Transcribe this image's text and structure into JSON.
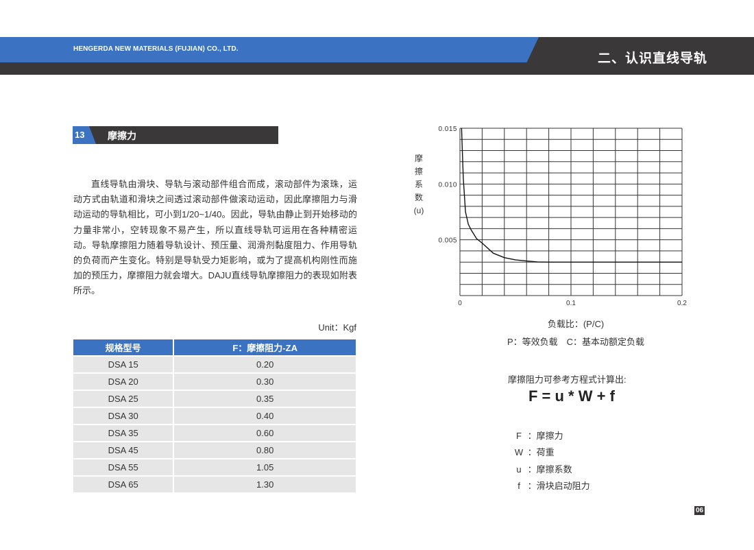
{
  "header": {
    "company": "HENGERDA NEW MATERIALS (FUJIAN) CO., LTD.",
    "chapter": "二、认识直线导轨",
    "colors": {
      "blue": "#3b73c2",
      "dark": "#3a3839"
    }
  },
  "section": {
    "number": "13",
    "title": "摩擦力"
  },
  "paragraph": "直线导轨由滑块、导轨与滚动部件组合而成，滚动部件为滚珠，运动方式由轨道和滑块之间透过滚动部件做滚动运动，因此摩擦阻力与滑动运动的导轨相比，可小到1/20~1/40。因此，导轨由静止到开始移动的力量非常小，空转现象不易产生，所以直线导轨可运用在各种精密运动。导轨摩擦阻力随着导轨设计、预压量、润滑剂黏度阻力、作用导轨的负荷而产生变化。特别是导轨受力矩影响，或为了提高机构刚性而施加的预压力，摩擦阻力就会增大。DAJU直线导轨摩擦阻力的表现如附表所示。",
  "table": {
    "unit": "Unit：Kgf",
    "headers": [
      "规格型号",
      "F：摩擦阻力-ZA"
    ],
    "rows": [
      [
        "DSA 15",
        "0.20"
      ],
      [
        "DSA 20",
        "0.30"
      ],
      [
        "DSA 25",
        "0.35"
      ],
      [
        "DSA 30",
        "0.40"
      ],
      [
        "DSA 35",
        "0.60"
      ],
      [
        "DSA 45",
        "0.80"
      ],
      [
        "DSA 55",
        "1.05"
      ],
      [
        "DSA 65",
        "1.30"
      ]
    ]
  },
  "chart_data": {
    "type": "line",
    "ylabel": "摩擦系数(u)",
    "ylabel_chars": [
      "摩",
      "擦",
      "系",
      "数",
      "(u)"
    ],
    "xlabel": "负载比：(P/C)",
    "xlim": [
      0,
      0.2
    ],
    "ylim": [
      0,
      0.015
    ],
    "xticks": [
      "0",
      "0.1",
      "0.2"
    ],
    "xtick_values": [
      0,
      0.1,
      0.2
    ],
    "yticks": [
      "0.005",
      "0.010",
      "0.015"
    ],
    "ytick_values": [
      0.005,
      0.01,
      0.015
    ],
    "grid": true,
    "grid_x_step": 0.02,
    "grid_y_step": 0.001,
    "x": [
      0.0015,
      0.002,
      0.003,
      0.005,
      0.0075,
      0.01,
      0.015,
      0.02,
      0.03,
      0.04,
      0.05,
      0.06,
      0.07,
      0.08,
      0.1,
      0.15,
      0.2
    ],
    "y": [
      0.015,
      0.0135,
      0.0105,
      0.0075,
      0.0064,
      0.0059,
      0.0051,
      0.0047,
      0.0038,
      0.0034,
      0.0032,
      0.0031,
      0.00302,
      0.003,
      0.003,
      0.003,
      0.003
    ]
  },
  "chart_notes": {
    "pc_note": "P：等效负载　C：基本动额定负载",
    "calc_intro": "摩擦阻力可参考方程式计算出:",
    "formula": "F = u * W + f",
    "definitions": [
      {
        "key": "F",
        "value": "摩擦力"
      },
      {
        "key": "W",
        "value": "荷重"
      },
      {
        "key": "u",
        "value": "摩擦系数"
      },
      {
        "key": "f",
        "value": "滑块启动阻力"
      }
    ]
  },
  "page_number": "06"
}
